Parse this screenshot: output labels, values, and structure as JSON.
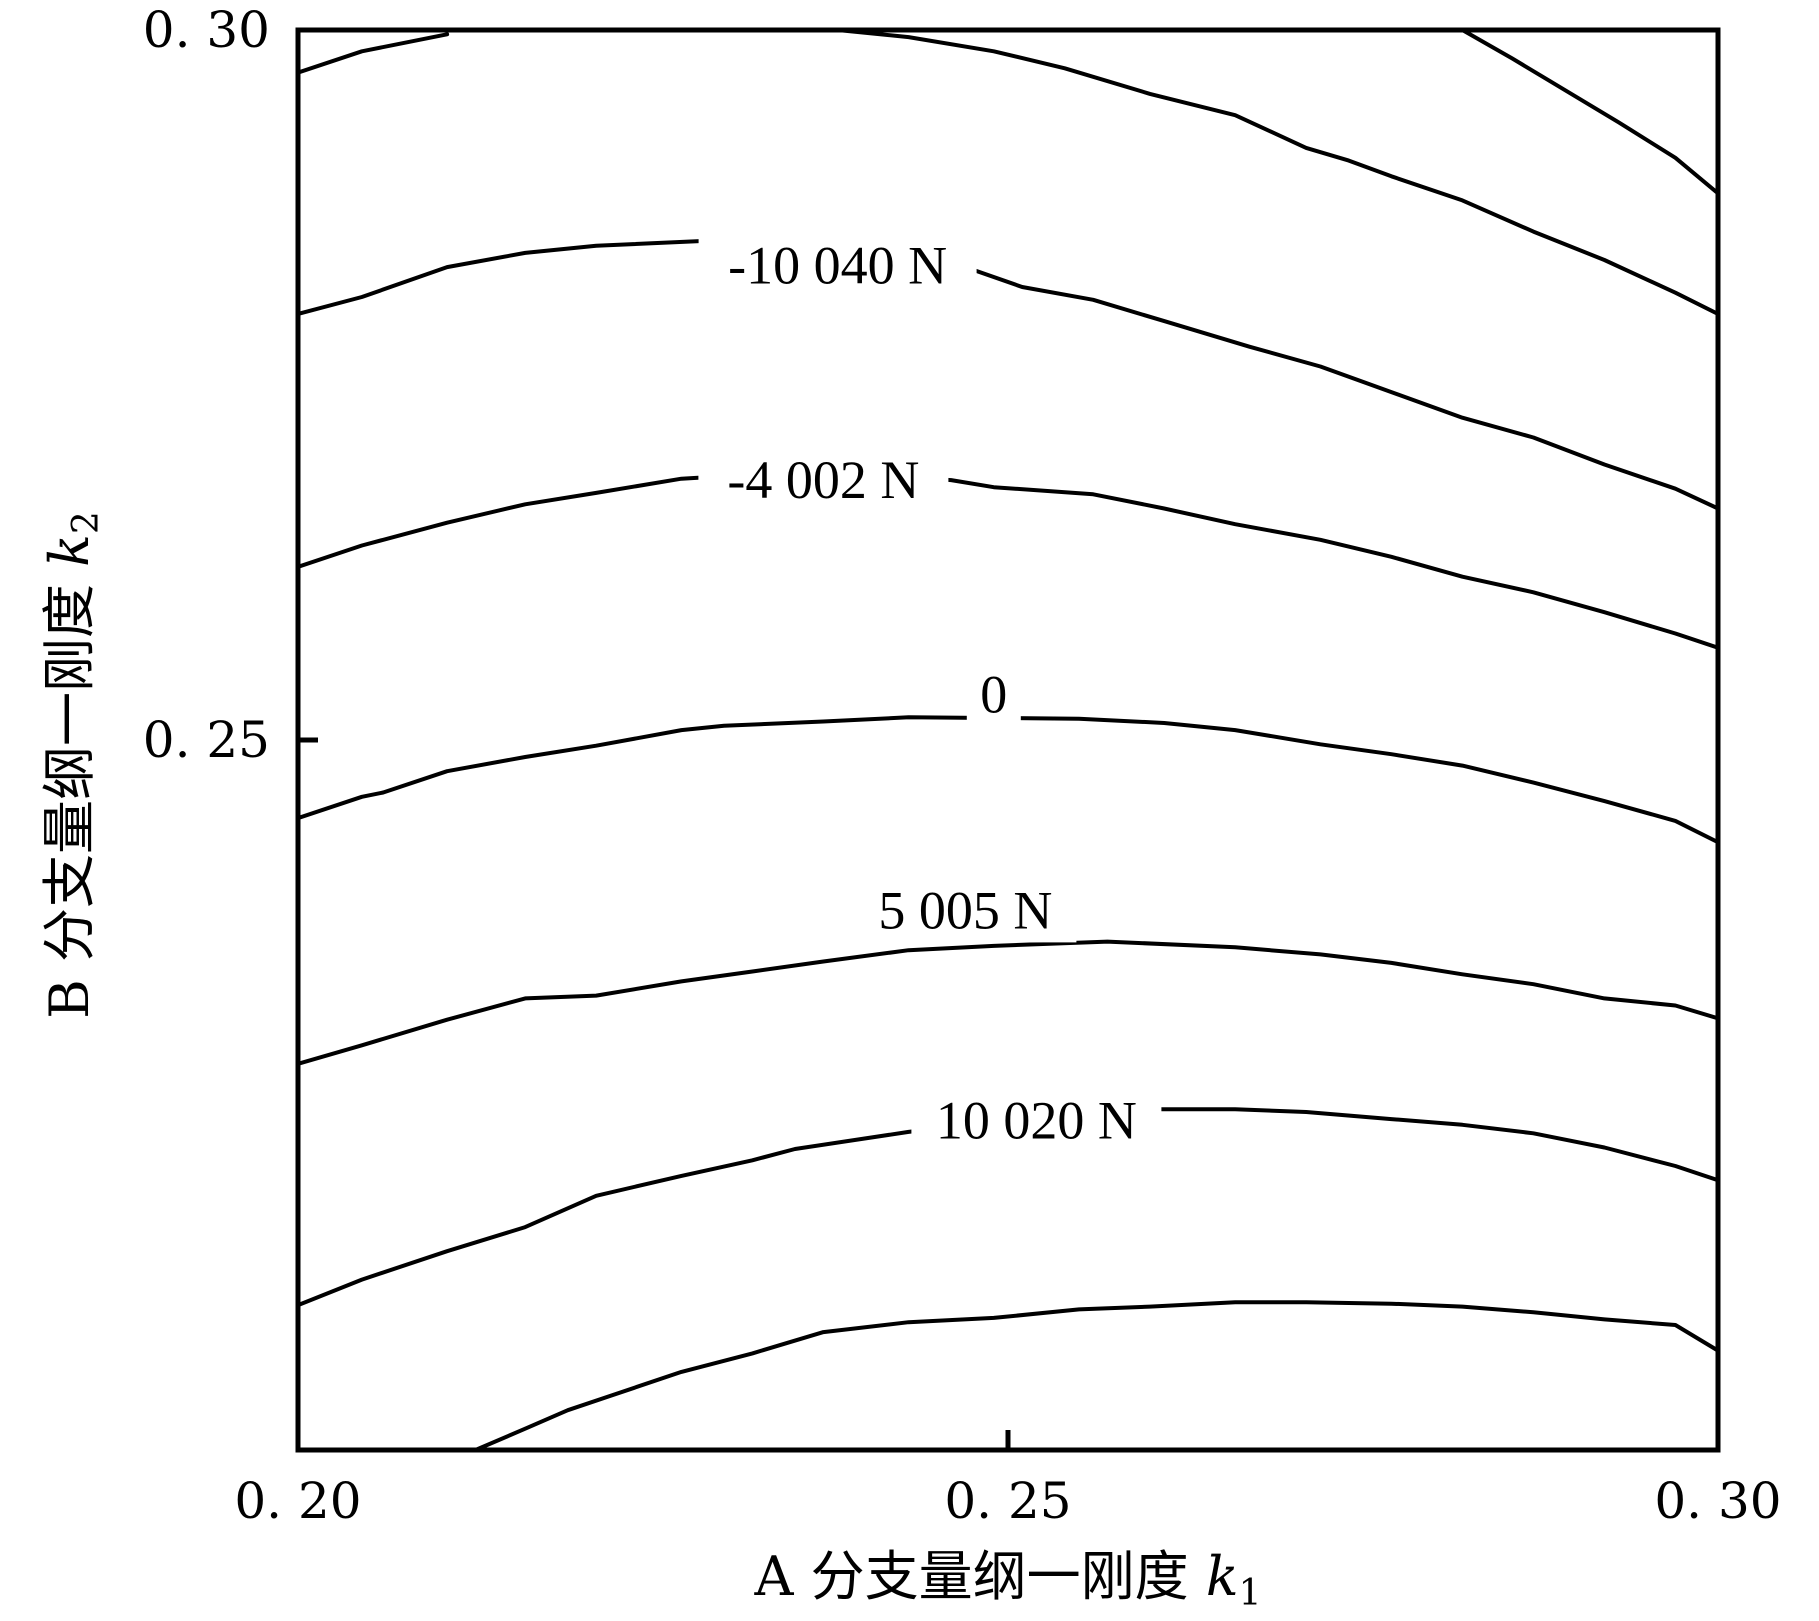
{
  "chart_data": {
    "type": "contour",
    "title": "",
    "xlabel": {
      "prefix": "A 分支量纲一刚度 ",
      "var": "k",
      "sub": "1"
    },
    "ylabel": {
      "prefix": "B 分支量纲一刚度 ",
      "var": "k",
      "sub": "2"
    },
    "xlim": [
      0.2,
      0.3
    ],
    "ylim": [
      0.2,
      0.3
    ],
    "xticks": [
      {
        "value": 0.2,
        "label": "0. 20"
      },
      {
        "value": 0.25,
        "label": "0. 25"
      },
      {
        "value": 0.3,
        "label": "0. 30"
      }
    ],
    "yticks": [
      {
        "value": 0.25,
        "label": "0. 25"
      },
      {
        "value": 0.3,
        "label": "0. 30"
      }
    ],
    "contours": [
      {
        "level": "",
        "points": [
          [
            0.2,
            0.297
          ],
          [
            0.2045,
            0.2985
          ],
          [
            0.2105,
            0.2997
          ]
        ]
      },
      {
        "level": "",
        "points": [
          [
            0.238,
            0.3
          ],
          [
            0.243,
            0.2995
          ],
          [
            0.249,
            0.2985
          ],
          [
            0.254,
            0.2973
          ],
          [
            0.26,
            0.2955
          ],
          [
            0.266,
            0.294
          ],
          [
            0.271,
            0.2917
          ],
          [
            0.274,
            0.2908
          ],
          [
            0.277,
            0.2897
          ],
          [
            0.282,
            0.288
          ],
          [
            0.287,
            0.2858
          ],
          [
            0.292,
            0.2838
          ],
          [
            0.297,
            0.2815
          ],
          [
            0.3,
            0.28
          ]
        ]
      },
      {
        "level": "",
        "points": [
          [
            0.282,
            0.3
          ],
          [
            0.2855,
            0.298
          ],
          [
            0.288,
            0.2965
          ],
          [
            0.293,
            0.2935
          ],
          [
            0.297,
            0.291
          ],
          [
            0.3,
            0.2885
          ]
        ]
      },
      {
        "level": "-10 040 N",
        "label_at": [
          0.238,
          0.2834
        ],
        "points": [
          [
            0.2,
            0.28
          ],
          [
            0.2045,
            0.2812
          ],
          [
            0.2105,
            0.2833
          ],
          [
            0.216,
            0.2843
          ],
          [
            0.221,
            0.2848
          ],
          [
            0.232,
            0.2853
          ],
          [
            0.236,
            0.2851
          ],
          [
            0.247,
            0.2833
          ],
          [
            0.251,
            0.2819
          ],
          [
            0.256,
            0.281
          ],
          [
            0.261,
            0.2795
          ],
          [
            0.267,
            0.2777
          ],
          [
            0.272,
            0.2763
          ],
          [
            0.277,
            0.2745
          ],
          [
            0.282,
            0.2727
          ],
          [
            0.287,
            0.2713
          ],
          [
            0.292,
            0.2694
          ],
          [
            0.297,
            0.2677
          ],
          [
            0.3,
            0.2663
          ]
        ]
      },
      {
        "level": "-4 002 N",
        "label_at": [
          0.237,
          0.2683
        ],
        "points": [
          [
            0.2,
            0.2622
          ],
          [
            0.2045,
            0.2637
          ],
          [
            0.2105,
            0.2653
          ],
          [
            0.216,
            0.2666
          ],
          [
            0.221,
            0.2674
          ],
          [
            0.227,
            0.2684
          ],
          [
            0.232,
            0.2687
          ],
          [
            0.237,
            0.2689
          ],
          [
            0.246,
            0.2683
          ],
          [
            0.249,
            0.2678
          ],
          [
            0.256,
            0.2673
          ],
          [
            0.261,
            0.2663
          ],
          [
            0.266,
            0.2652
          ],
          [
            0.272,
            0.2641
          ],
          [
            0.277,
            0.2629
          ],
          [
            0.282,
            0.2615
          ],
          [
            0.287,
            0.2604
          ],
          [
            0.292,
            0.259
          ],
          [
            0.297,
            0.2575
          ],
          [
            0.3,
            0.2565
          ]
        ]
      },
      {
        "level": "0",
        "label_at": [
          0.249,
          0.2532
        ],
        "points": [
          [
            0.2,
            0.2445
          ],
          [
            0.2045,
            0.246
          ],
          [
            0.206,
            0.2463
          ],
          [
            0.2105,
            0.2478
          ],
          [
            0.216,
            0.2488
          ],
          [
            0.221,
            0.2496
          ],
          [
            0.227,
            0.2507
          ],
          [
            0.23,
            0.251
          ],
          [
            0.237,
            0.2513
          ],
          [
            0.243,
            0.2516
          ],
          [
            0.255,
            0.2515
          ],
          [
            0.261,
            0.2512
          ],
          [
            0.266,
            0.2507
          ],
          [
            0.272,
            0.2497
          ],
          [
            0.277,
            0.249
          ],
          [
            0.282,
            0.2482
          ],
          [
            0.287,
            0.247
          ],
          [
            0.292,
            0.2457
          ],
          [
            0.297,
            0.2443
          ],
          [
            0.3,
            0.2428
          ]
        ]
      },
      {
        "level": "5 005 N",
        "label_at": [
          0.247,
          0.238
        ],
        "points": [
          [
            0.2,
            0.2272
          ],
          [
            0.2045,
            0.2285
          ],
          [
            0.2105,
            0.2303
          ],
          [
            0.216,
            0.2318
          ],
          [
            0.221,
            0.232
          ],
          [
            0.227,
            0.233
          ],
          [
            0.232,
            0.2337
          ],
          [
            0.237,
            0.2344
          ],
          [
            0.243,
            0.2352
          ],
          [
            0.249,
            0.2355
          ],
          [
            0.257,
            0.2358
          ],
          [
            0.266,
            0.2354
          ],
          [
            0.272,
            0.2349
          ],
          [
            0.277,
            0.2343
          ],
          [
            0.282,
            0.2335
          ],
          [
            0.287,
            0.2328
          ],
          [
            0.292,
            0.2318
          ],
          [
            0.297,
            0.2313
          ],
          [
            0.3,
            0.2304
          ]
        ]
      },
      {
        "level": "10 020 N",
        "label_at": [
          0.252,
          0.2232
        ],
        "points": [
          [
            0.2,
            0.2102
          ],
          [
            0.2045,
            0.212
          ],
          [
            0.2105,
            0.214
          ],
          [
            0.216,
            0.2157
          ],
          [
            0.221,
            0.2179
          ],
          [
            0.227,
            0.2193
          ],
          [
            0.232,
            0.2204
          ],
          [
            0.235,
            0.2212
          ],
          [
            0.243,
            0.2224
          ],
          [
            0.249,
            0.2231
          ],
          [
            0.255,
            0.2237
          ],
          [
            0.26,
            0.224
          ],
          [
            0.266,
            0.224
          ],
          [
            0.271,
            0.2238
          ],
          [
            0.277,
            0.2233
          ],
          [
            0.282,
            0.2229
          ],
          [
            0.287,
            0.2223
          ],
          [
            0.292,
            0.2213
          ],
          [
            0.297,
            0.22
          ],
          [
            0.3,
            0.219
          ]
        ]
      },
      {
        "level": "",
        "points": [
          [
            0.2125,
            0.2
          ],
          [
            0.216,
            0.2015
          ],
          [
            0.219,
            0.2028
          ],
          [
            0.227,
            0.2055
          ],
          [
            0.232,
            0.2068
          ],
          [
            0.237,
            0.2083
          ],
          [
            0.243,
            0.209
          ],
          [
            0.249,
            0.2093
          ],
          [
            0.255,
            0.2099
          ],
          [
            0.26,
            0.2101
          ],
          [
            0.266,
            0.2104
          ],
          [
            0.271,
            0.2104
          ],
          [
            0.277,
            0.2103
          ],
          [
            0.282,
            0.2101
          ],
          [
            0.287,
            0.2097
          ],
          [
            0.292,
            0.2092
          ],
          [
            0.297,
            0.2088
          ],
          [
            0.3,
            0.207
          ]
        ]
      }
    ],
    "grid": false,
    "legend": "none"
  }
}
